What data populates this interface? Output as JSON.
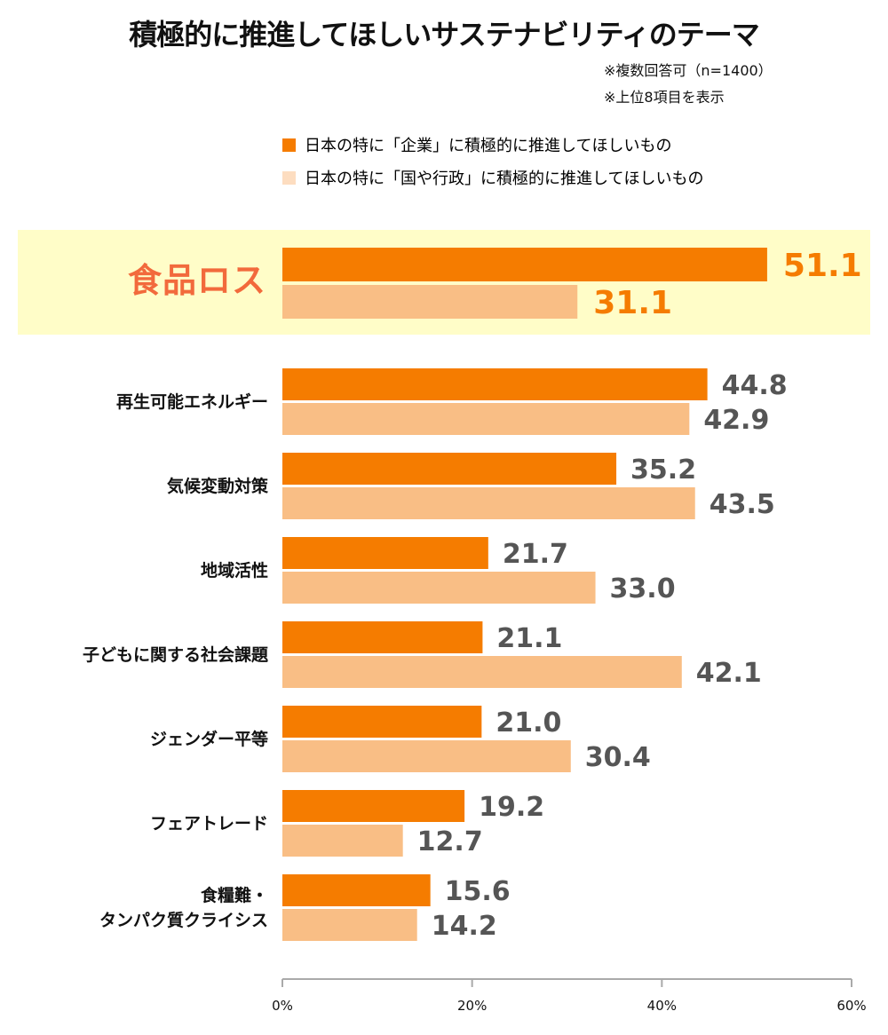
{
  "chart_data": {
    "type": "bar",
    "orientation": "horizontal",
    "title": "積極的に推進してほしいサステナビリティのテーマ",
    "notes": [
      "※複数回答可（n=1400）",
      "※上位8項目を表示"
    ],
    "categories": [
      "食品ロス",
      "再生可能エネルギー",
      "気候変動対策",
      "地域活性",
      "子どもに関する社会課題",
      "ジェンダー平等",
      "フェアトレード",
      "食糧難・\nタンパク質クライシス"
    ],
    "highlighted_category": "食品ロス",
    "series": [
      {
        "name": "日本の特に「企業」に積極的に推進してほしいもの",
        "color": "#F57C00",
        "values": [
          51.1,
          44.8,
          35.2,
          21.7,
          21.1,
          21.0,
          19.2,
          15.6
        ]
      },
      {
        "name": "日本の特に「国や行政」に積極的に推進してほしいもの",
        "color": "#F9BE85",
        "legend_color": "#FDDDC0",
        "values": [
          31.1,
          42.9,
          43.5,
          33.0,
          42.1,
          30.4,
          12.7,
          14.2
        ]
      }
    ],
    "xlim": [
      0,
      60
    ],
    "xticks": [
      "0%",
      "20%",
      "40%",
      "60%"
    ],
    "legend": "top",
    "grid": false,
    "highlight_color": "#FFFDC8",
    "highlight_label_color": "#F26A3C"
  }
}
